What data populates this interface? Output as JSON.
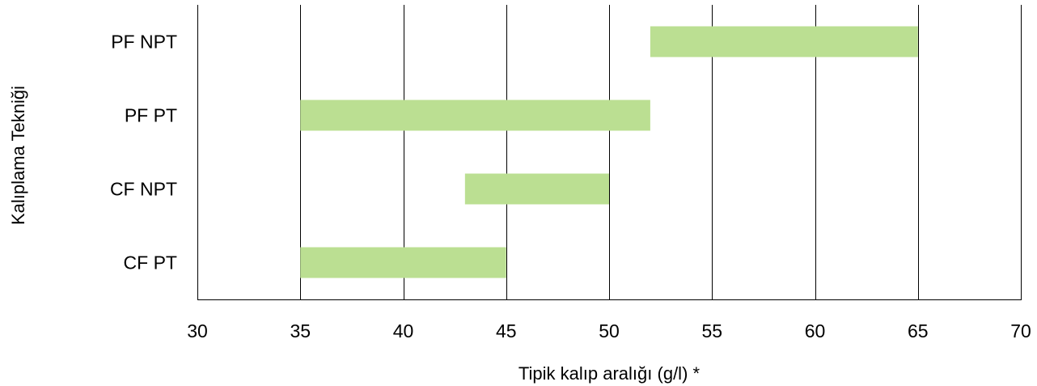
{
  "chart_data": {
    "type": "bar",
    "orientation": "horizontal",
    "subtype": "floating-range",
    "title": "",
    "xlabel": "Tipik kalıp aralığı (g/l) *",
    "ylabel": "Kalıplama Tekniği",
    "xlim": [
      30,
      70
    ],
    "xticks": [
      30,
      35,
      40,
      45,
      50,
      55,
      60,
      65,
      70
    ],
    "xtick_labels": [
      "30",
      "35",
      "40",
      "45",
      "50",
      "55",
      "60",
      "65",
      "70"
    ],
    "categories": [
      "PF NPT",
      "PF PT",
      "CF NPT",
      "CF PT"
    ],
    "ranges": [
      {
        "category": "PF NPT",
        "start": 52,
        "end": 65
      },
      {
        "category": "PF PT",
        "start": 35,
        "end": 52
      },
      {
        "category": "CF NPT",
        "start": 43,
        "end": 50
      },
      {
        "category": "CF PT",
        "start": 35,
        "end": 45
      }
    ],
    "grid": {
      "x": true,
      "y": false
    },
    "legend": "none",
    "bar_color": "#bbdf92",
    "grid_color": "#000000"
  }
}
